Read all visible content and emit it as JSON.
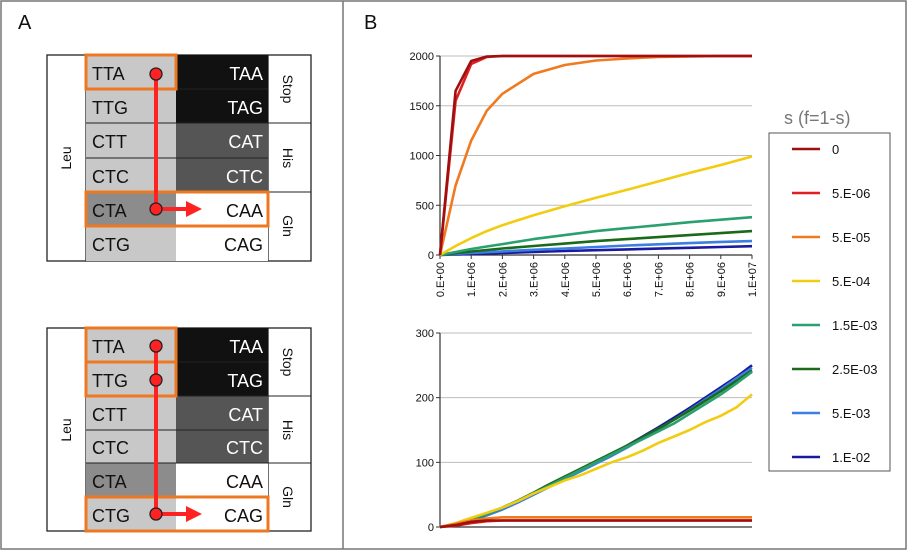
{
  "panels": {
    "a_label": "A",
    "b_label": "B"
  },
  "codon_tables": [
    {
      "left_codons": [
        "TTA",
        "TTG",
        "CTT",
        "CTC",
        "CTA",
        "CTG"
      ],
      "right_codons": [
        "TAA",
        "TAG",
        "CAT",
        "CTC",
        "CAA",
        "CAG"
      ],
      "left_aa": "Leu",
      "right_aa": [
        "Stop",
        "His",
        "Gln"
      ]
    },
    {
      "left_codons": [
        "TTA",
        "TTG",
        "CTT",
        "CTC",
        "CTA",
        "CTG"
      ],
      "right_codons": [
        "TAA",
        "TAG",
        "CAT",
        "CTC",
        "CAA",
        "CAG"
      ],
      "left_aa": "Leu",
      "right_aa": [
        "Stop",
        "His",
        "Gln"
      ]
    }
  ],
  "colors": {
    "accent_orange": "#ee7722",
    "arrow_red": "#ff2222",
    "light_gray": "#c8c8c8",
    "mid_gray": "#8c8c8c",
    "dark_gray": "#555555",
    "near_black": "#111111"
  },
  "chart_data": [
    {
      "type": "line",
      "x_ticks": [
        "0.E+00",
        "1.E+06",
        "2.E+06",
        "3.E+06",
        "4.E+06",
        "5.E+06",
        "6.E+06",
        "7.E+06",
        "8.E+06",
        "9.E+06",
        "1.E+07"
      ],
      "y_ticks": [
        "0",
        "500",
        "1000",
        "1500",
        "2000"
      ],
      "xlim": [
        0,
        10000000
      ],
      "ylim": [
        0,
        2000
      ],
      "grid": true,
      "x": [
        0,
        500000,
        1000000,
        1500000,
        2000000,
        3000000,
        4000000,
        5000000,
        6000000,
        7000000,
        8000000,
        9000000,
        10000000
      ],
      "series": [
        {
          "name": "0",
          "color": "#9e1010",
          "values": [
            0,
            1650,
            1950,
            1995,
            2000,
            2000,
            2000,
            2000,
            2000,
            2000,
            2000,
            2000,
            2000
          ]
        },
        {
          "name": "5.E-06",
          "color": "#e02020",
          "values": [
            0,
            1550,
            1920,
            1990,
            2000,
            2000,
            2000,
            2000,
            2000,
            2000,
            2000,
            2000,
            2000
          ]
        },
        {
          "name": "5.E-05",
          "color": "#f07a20",
          "values": [
            0,
            700,
            1150,
            1450,
            1620,
            1820,
            1910,
            1955,
            1975,
            1990,
            1995,
            2000,
            2000
          ]
        },
        {
          "name": "5.E-04",
          "color": "#f2cc10",
          "values": [
            0,
            90,
            170,
            240,
            300,
            400,
            490,
            575,
            655,
            740,
            825,
            905,
            990
          ]
        },
        {
          "name": "1.5E-03",
          "color": "#2aa070",
          "values": [
            0,
            30,
            60,
            85,
            110,
            160,
            200,
            240,
            270,
            300,
            330,
            355,
            380
          ]
        },
        {
          "name": "2.5E-03",
          "color": "#1a6a1a",
          "values": [
            0,
            18,
            35,
            50,
            65,
            90,
            115,
            140,
            160,
            180,
            200,
            220,
            240
          ]
        },
        {
          "name": "5.E-03",
          "color": "#3b7fe0",
          "values": [
            0,
            10,
            20,
            28,
            36,
            52,
            65,
            80,
            95,
            108,
            120,
            132,
            140
          ]
        },
        {
          "name": "1.E-02",
          "color": "#1a1aa0",
          "values": [
            0,
            5,
            10,
            15,
            20,
            30,
            40,
            48,
            56,
            64,
            72,
            80,
            88
          ]
        }
      ]
    },
    {
      "type": "line",
      "y_ticks": [
        "0",
        "100",
        "200",
        "300"
      ],
      "xlim": [
        0,
        10000000
      ],
      "ylim": [
        0,
        300
      ],
      "grid": true,
      "x": [
        0,
        500000,
        1000000,
        1500000,
        2000000,
        2500000,
        3000000,
        3500000,
        4000000,
        4500000,
        5000000,
        5500000,
        6000000,
        6500000,
        7000000,
        7500000,
        8000000,
        8500000,
        9000000,
        9500000,
        10000000
      ],
      "series": [
        {
          "name": "0",
          "color": "#9e1010",
          "values": [
            0,
            3,
            8,
            10,
            10,
            10,
            10,
            10,
            10,
            10,
            10,
            10,
            10,
            10,
            10,
            10,
            10,
            10,
            10,
            10,
            10
          ]
        },
        {
          "name": "5.E-06",
          "color": "#e02020",
          "values": [
            0,
            2,
            6,
            9,
            10,
            10,
            10,
            10,
            10,
            10,
            10,
            10,
            10,
            10,
            10,
            10,
            10,
            10,
            10,
            10,
            10
          ]
        },
        {
          "name": "5.E-05",
          "color": "#f07a20",
          "values": [
            0,
            5,
            10,
            13,
            15,
            15,
            15,
            15,
            15,
            15,
            15,
            15,
            15,
            15,
            15,
            15,
            15,
            15,
            15,
            15,
            15
          ]
        },
        {
          "name": "5.E-04",
          "color": "#f2cc10",
          "values": [
            0,
            6,
            14,
            22,
            30,
            40,
            52,
            62,
            72,
            80,
            90,
            100,
            108,
            118,
            130,
            140,
            150,
            162,
            172,
            185,
            205
          ]
        },
        {
          "name": "1.5E-03",
          "color": "#2aa070",
          "values": [
            0,
            5,
            12,
            20,
            30,
            40,
            52,
            64,
            76,
            88,
            100,
            112,
            124,
            136,
            148,
            160,
            175,
            190,
            205,
            222,
            240
          ]
        },
        {
          "name": "2.5E-03",
          "color": "#1a6a1a",
          "values": [
            0,
            4,
            11,
            20,
            30,
            41,
            53,
            66,
            78,
            90,
            102,
            114,
            126,
            139,
            152,
            166,
            180,
            195,
            210,
            226,
            242
          ]
        },
        {
          "name": "5.E-03",
          "color": "#3b7fe0",
          "values": [
            0,
            3,
            10,
            18,
            27,
            38,
            50,
            62,
            74,
            86,
            98,
            110,
            123,
            137,
            151,
            166,
            181,
            197,
            213,
            230,
            246
          ]
        },
        {
          "name": "1.E-02",
          "color": "#1a1aa0",
          "values": [
            0,
            4,
            11,
            19,
            29,
            40,
            52,
            65,
            77,
            89,
            101,
            113,
            126,
            140,
            154,
            169,
            184,
            200,
            216,
            232,
            250
          ]
        }
      ]
    }
  ],
  "legend": {
    "title": "s (f=1-s)",
    "entries": [
      "0",
      "5.E-06",
      "5.E-05",
      "5.E-04",
      "1.5E-03",
      "2.5E-03",
      "5.E-03",
      "1.E-02"
    ]
  }
}
